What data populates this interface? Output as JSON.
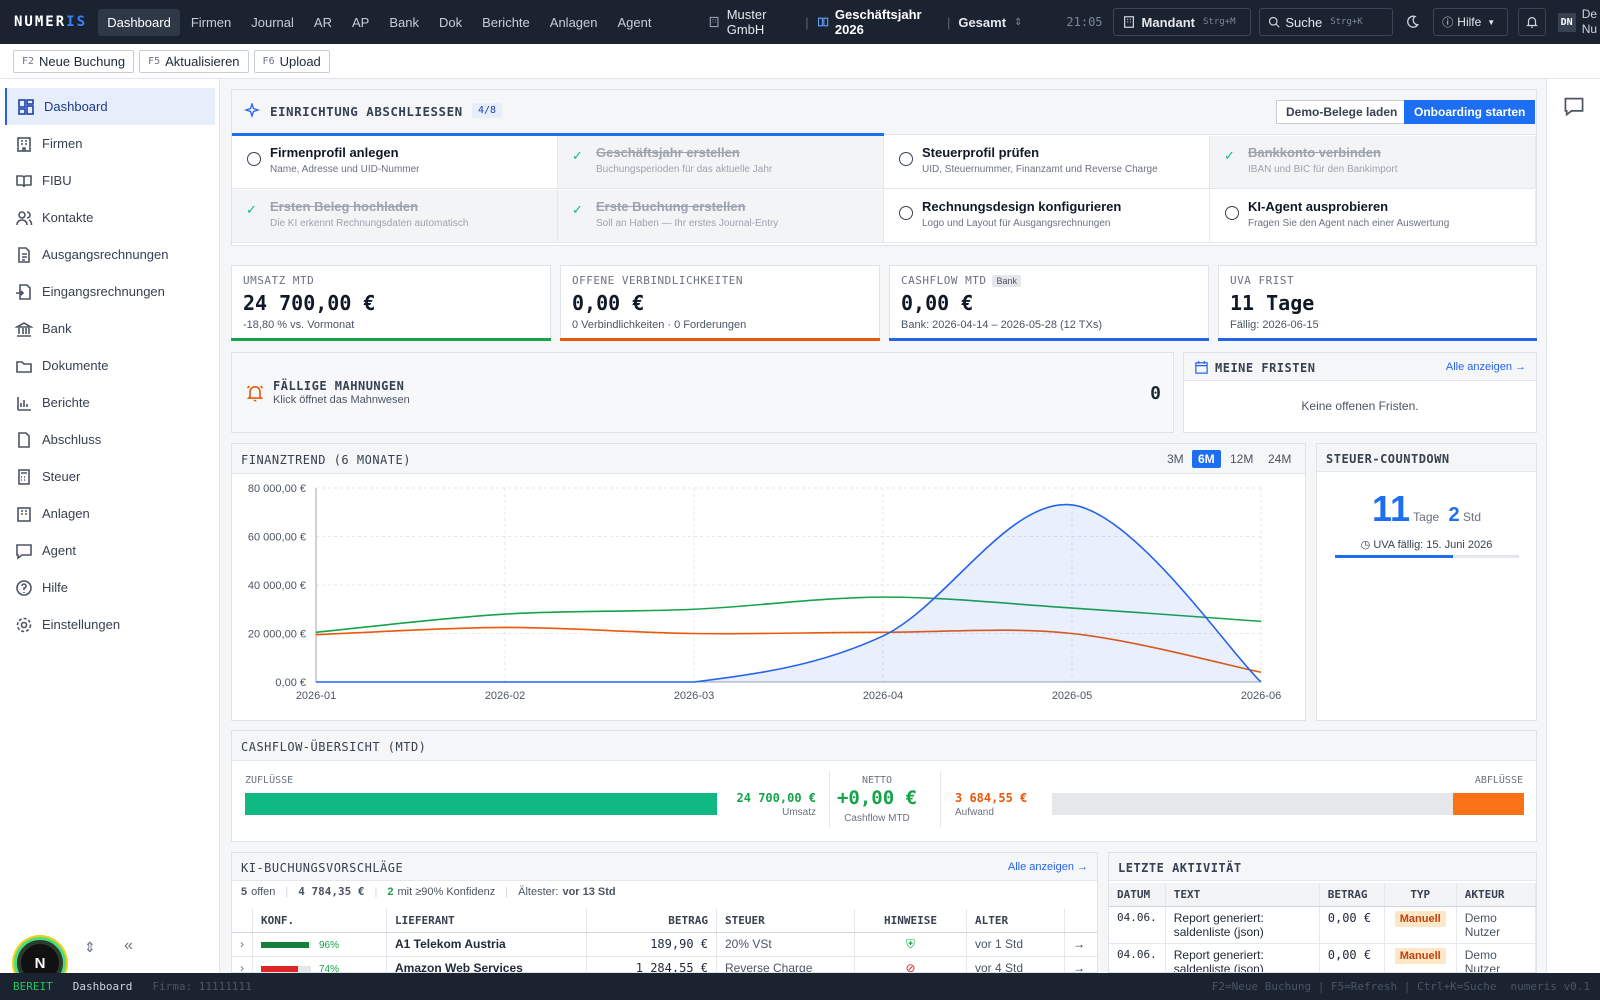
{
  "app": {
    "logo_a": "NUMER",
    "logo_b": "IS"
  },
  "topnav": {
    "items": [
      "Dashboard",
      "Firmen",
      "Journal",
      "AR",
      "AP",
      "Bank",
      "Dok",
      "Berichte",
      "Anlagen",
      "Agent"
    ]
  },
  "context": {
    "company": "Muster GmbH",
    "fiscal_year": "Geschäftsjahr 2026",
    "scope": "Gesamt"
  },
  "header": {
    "clock": "21:05",
    "mandant_label": "Mandant",
    "mandant_kbd": "Strg+M",
    "search_label": "Suche",
    "search_kbd": "Strg+K",
    "help_label": "Hilfe",
    "user_initials": "DN",
    "user_name_a": "De",
    "user_name_b": "Nu"
  },
  "fkeys": [
    {
      "key": "F2",
      "label": "Neue Buchung"
    },
    {
      "key": "F5",
      "label": "Aktualisieren"
    },
    {
      "key": "F6",
      "label": "Upload"
    }
  ],
  "sidebar": {
    "items": [
      "Dashboard",
      "Firmen",
      "FIBU",
      "Kontakte",
      "Ausgangsrechnungen",
      "Eingangsrechnungen",
      "Bank",
      "Dokumente",
      "Berichte",
      "Abschluss",
      "Steuer",
      "Anlagen",
      "Agent",
      "Hilfe",
      "Einstellungen"
    ],
    "avatar_letter": "N"
  },
  "onboarding": {
    "title": "EINRICHTUNG ABSCHLIESSEN",
    "progress": "4/8",
    "progress_fraction": 0.5,
    "demo_button": "Demo-Belege laden",
    "start_button": "Onboarding starten",
    "steps": [
      {
        "title": "Firmenprofil anlegen",
        "sub": "Name, Adresse und UID-Nummer",
        "done": false
      },
      {
        "title": "Geschäftsjahr erstellen",
        "sub": "Buchungsperioden für das aktuelle Jahr",
        "done": true
      },
      {
        "title": "Steuerprofil prüfen",
        "sub": "UID, Steuernummer, Finanzamt und Reverse Charge",
        "done": false
      },
      {
        "title": "Bankkonto verbinden",
        "sub": "IBAN und BIC für den Bankimport",
        "done": true
      },
      {
        "title": "Ersten Beleg hochladen",
        "sub": "Die KI erkennt Rechnungsdaten automatisch",
        "done": true
      },
      {
        "title": "Erste Buchung erstellen",
        "sub": "Soll an Haben — Ihr erstes Journal-Entry",
        "done": true
      },
      {
        "title": "Rechnungsdesign konfigurieren",
        "sub": "Logo und Layout für Ausgangsrechnungen",
        "done": false
      },
      {
        "title": "KI-Agent ausprobieren",
        "sub": "Fragen Sie den Agent nach einer Auswertung",
        "done": false
      }
    ]
  },
  "kpis": [
    {
      "label": "UMSATZ MTD",
      "value": "24 700,00 €",
      "sub": "-18,80 % vs. Vormonat",
      "color": "#16a34a",
      "tag": ""
    },
    {
      "label": "OFFENE VERBINDLICHKEITEN",
      "value": "0,00 €",
      "sub": "0 Verbindlichkeiten · 0 Forderungen",
      "color": "#ea580c",
      "tag": ""
    },
    {
      "label": "CASHFLOW MTD",
      "value": "0,00 €",
      "sub": "Bank: 2026-04-14 – 2026-05-28 (12 TXs)",
      "color": "#2563eb",
      "tag": "Bank"
    },
    {
      "label": "UVA FRIST",
      "value": "11 Tage",
      "sub": "Fällig: 2026-06-15",
      "color": "#2563eb",
      "tag": ""
    }
  ],
  "mahnungen": {
    "title": "FÄLLIGE MAHNUNGEN",
    "sub": "Klick öffnet das Mahnwesen",
    "count": "0"
  },
  "fristen": {
    "title": "MEINE FRISTEN",
    "link": "Alle anzeigen →",
    "empty": "Keine offenen Fristen."
  },
  "trend": {
    "title": "FINANZTREND (6 MONATE)",
    "ranges": [
      "3M",
      "6M",
      "12M",
      "24M"
    ],
    "active_range": "6M"
  },
  "chart_data": {
    "type": "line",
    "x": [
      "2026-01",
      "2026-02",
      "2026-03",
      "2026-04",
      "2026-05",
      "2026-06"
    ],
    "y_ticks": [
      "0,00 €",
      "20 000,00 €",
      "40 000,00 €",
      "60 000,00 €",
      "80 000,00 €"
    ],
    "ylim": [
      0,
      80000
    ],
    "grid": true,
    "series": [
      {
        "color": "#16a34a",
        "values": [
          20500,
          28000,
          30000,
          35000,
          30500,
          25000
        ],
        "fill": false
      },
      {
        "color": "#ea580c",
        "values": [
          19500,
          22500,
          20000,
          20500,
          20000,
          4000
        ],
        "fill": false
      },
      {
        "color": "#2563eb",
        "values": [
          0,
          0,
          0,
          19000,
          73000,
          0
        ],
        "fill": true
      }
    ]
  },
  "countdown": {
    "title": "STEUER-COUNTDOWN",
    "days": "11",
    "days_label": "Tage",
    "hours": "2",
    "hours_label": "Std",
    "due": "UVA fällig: 15. Juni 2026",
    "progress": 0.64
  },
  "cashflow": {
    "title": "CASHFLOW-ÜBERSICHT (MTD)",
    "in_label": "ZUFLÜSSE",
    "in_value": "24 700,00 €",
    "in_sub": "Umsatz",
    "net_label": "NETTO",
    "net_value": "+0,00 €",
    "net_sub": "Cashflow MTD",
    "out_value": "3 684,55 €",
    "out_sub": "Aufwand",
    "out_label": "ABFLÜSSE",
    "in_fraction": 1.0,
    "out_fraction": 0.15
  },
  "ki": {
    "title": "KI-BUCHUNGSVORSCHLÄGE",
    "link": "Alle anzeigen →",
    "stat_open_n": "5",
    "stat_open": "offen",
    "stat_sum": "4 784,35 €",
    "stat_conf_n": "2",
    "stat_conf": "mit ≥90% Konfidenz",
    "stat_oldest_label": "Ältester:",
    "stat_oldest": "vor 13 Std",
    "columns": [
      "KONF.",
      "LIEFERANT",
      "BETRAG",
      "STEUER",
      "HINWEISE",
      "ALTER"
    ],
    "rows": [
      {
        "conf": "96%",
        "conf_value": 0.96,
        "vendor": "A1 Telekom Austria",
        "amount": "189,90 €",
        "tax": "20% VSt",
        "age": "vor 1 Std",
        "ok": true
      },
      {
        "conf": "74%",
        "conf_value": 0.74,
        "vendor": "Amazon Web Services",
        "amount": "1 284,55 €",
        "tax": "Reverse Charge",
        "age": "vor 4 Std",
        "ok": false
      }
    ]
  },
  "activity": {
    "title": "LETZTE AKTIVITÄT",
    "columns": [
      "DATUM",
      "TEXT",
      "BETRAG",
      "TYP",
      "AKTEUR"
    ],
    "rows": [
      {
        "date": "04.06.",
        "text": "Report generiert: saldenliste (json)",
        "amount": "0,00 €",
        "type": "Manuell",
        "actor": "Demo Nutzer"
      },
      {
        "date": "04.06.",
        "text": "Report generiert: saldenliste (json)",
        "amount": "0,00 €",
        "type": "Manuell",
        "actor": "Demo Nutzer"
      }
    ]
  },
  "statusbar": {
    "state": "BEREIT",
    "page": "Dashboard",
    "firma": "Firma: 11111111",
    "shortcuts": "F2=Neue Buchung | F5=Refresh | Ctrl+K=Suche",
    "version": "numeris v0.1"
  }
}
